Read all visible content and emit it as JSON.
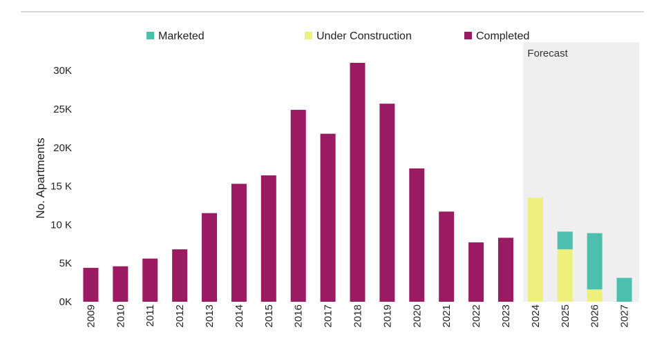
{
  "chart_data": {
    "type": "bar",
    "stacked": true,
    "title": "",
    "xlabel": "",
    "ylabel": "No. Apartments",
    "ylim": [
      0,
      31000
    ],
    "grid": false,
    "legend_position": "top",
    "categories": [
      "2009",
      "2010",
      "2011",
      "2012",
      "2013",
      "2014",
      "2015",
      "2016",
      "2017",
      "2018",
      "2019",
      "2020",
      "2021",
      "2022",
      "2023",
      "2024",
      "2025",
      "2026",
      "2027"
    ],
    "series": [
      {
        "name": "Completed",
        "color": "#9b1b63",
        "values": [
          4400,
          4600,
          5600,
          6800,
          11500,
          15300,
          16400,
          24900,
          21800,
          31000,
          25700,
          17300,
          11700,
          7700,
          8300,
          0,
          0,
          0,
          0
        ]
      },
      {
        "name": "Under Construction",
        "color": "#eef07e",
        "values": [
          0,
          0,
          0,
          0,
          0,
          0,
          0,
          0,
          0,
          0,
          0,
          0,
          0,
          0,
          0,
          13500,
          6800,
          1600,
          0
        ]
      },
      {
        "name": "Marketed",
        "color": "#4dbfae",
        "values": [
          0,
          0,
          0,
          0,
          0,
          0,
          0,
          0,
          0,
          0,
          0,
          0,
          0,
          0,
          0,
          0,
          2300,
          7300,
          3100
        ]
      }
    ],
    "legend_order": [
      "Marketed",
      "Under Construction",
      "Completed"
    ],
    "y_ticks": [
      {
        "value": 0,
        "label": "0K"
      },
      {
        "value": 5000,
        "label": "5K"
      },
      {
        "value": 10000,
        "label": "10 K"
      },
      {
        "value": 15000,
        "label": "15 K"
      },
      {
        "value": 20000,
        "label": "20K"
      },
      {
        "value": 25000,
        "label": "25K"
      },
      {
        "value": 30000,
        "label": "30K"
      }
    ],
    "forecast": {
      "label": "Forecast",
      "start_category": "2024",
      "end_category": "2027",
      "shade_color": "#efefef"
    }
  }
}
